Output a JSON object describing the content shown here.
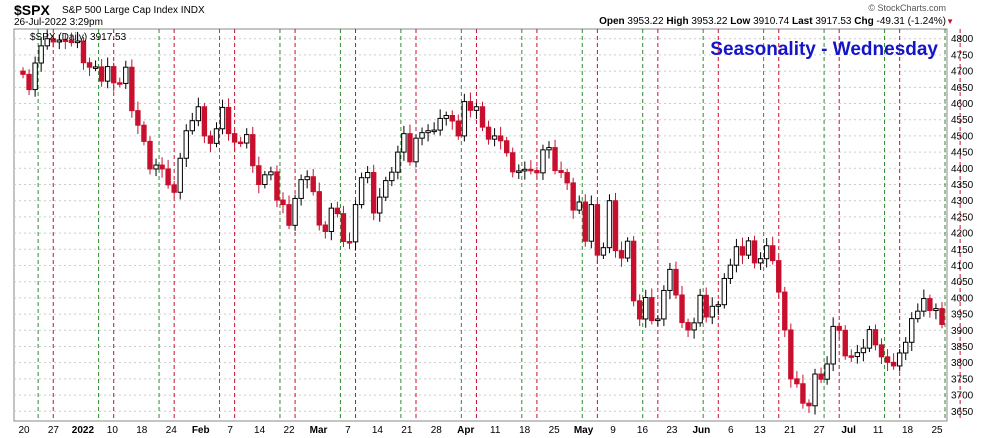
{
  "header": {
    "symbol": "$SPX",
    "name": "S&P 500 Large Cap Index INDX",
    "date": "26-Jul-2022 3:29pm",
    "watermark": "© StockCharts.com",
    "open_label": "Open",
    "open": "3953.22",
    "high_label": "High",
    "high": "3953.22",
    "low_label": "Low",
    "low": "3910.74",
    "last_label": "Last",
    "last": "3917.53",
    "chg_label": "Chg",
    "chg": "-49.31 (-1.24%)"
  },
  "colors": {
    "up_candle": "#000000",
    "down_candle": "#c8102e",
    "green_line": "#2e8b2e",
    "red_line": "#c8102e",
    "title_color": "#1414c8",
    "grid": "#cccccc"
  },
  "chart_data": {
    "type": "candlestick",
    "title": "Seasonality - Wednesday",
    "legend": "$SPX (Daily) 3917.53",
    "ylim": [
      3620,
      4830
    ],
    "y_ticks": [
      3650,
      3700,
      3750,
      3800,
      3850,
      3900,
      3950,
      4000,
      4050,
      4100,
      4150,
      4200,
      4250,
      4300,
      4350,
      4400,
      4450,
      4500,
      4550,
      4600,
      4650,
      4700,
      4750,
      4800
    ],
    "x_labels": [
      "20",
      "27",
      "2022",
      "10",
      "18",
      "24",
      "Feb",
      "7",
      "14",
      "22",
      "Mar",
      "7",
      "14",
      "21",
      "28",
      "Apr",
      "11",
      "18",
      "25",
      "May",
      "9",
      "16",
      "23",
      "Jun",
      "6",
      "13",
      "21",
      "27",
      "Jul",
      "11",
      "18",
      "25"
    ],
    "closes": [
      4690,
      4643,
      4725,
      4778,
      4800,
      4790,
      4796,
      4795,
      4788,
      4793,
      4726,
      4712,
      4713,
      4669,
      4714,
      4664,
      4662,
      4712,
      4578,
      4533,
      4483,
      4398,
      4410,
      4398,
      4349,
      4326,
      4431,
      4516,
      4547,
      4590,
      4500,
      4477,
      4522,
      4588,
      4507,
      4481,
      4478,
      4504,
      4408,
      4350,
      4380,
      4389,
      4302,
      4288,
      4224,
      4307,
      4365,
      4374,
      4328,
      4225,
      4205,
      4277,
      4260,
      4174,
      4173,
      4288,
      4371,
      4387,
      4262,
      4311,
      4362,
      4388,
      4450,
      4507,
      4420,
      4493,
      4510,
      4516,
      4518,
      4554,
      4563,
      4546,
      4500,
      4606,
      4579,
      4590,
      4527,
      4490,
      4500,
      4485,
      4448,
      4389,
      4392,
      4397,
      4393,
      4386,
      4457,
      4464,
      4393,
      4387,
      4355,
      4271,
      4296,
      4175,
      4288,
      4132,
      4155,
      4300,
      4146,
      4123,
      4175,
      3991,
      3935,
      4001,
      3930,
      3935,
      4023,
      4088,
      4009,
      3924,
      3901,
      3923,
      4008,
      3941,
      3974,
      3979,
      4060,
      4101,
      4158,
      4132,
      4176,
      4108,
      4121,
      4161,
      4115,
      4018,
      3901,
      3750,
      3735,
      3675,
      3667,
      3765,
      3749,
      3796,
      3912,
      3900,
      3821,
      3819,
      3831,
      3845,
      3902,
      3855,
      3818,
      3801,
      3790,
      3830,
      3863,
      3936,
      3959,
      3998,
      3961,
      3967,
      3918
    ],
    "wednesday_markers": [
      5,
      15,
      25,
      35,
      45,
      55,
      65,
      75,
      85,
      95,
      105,
      115,
      125,
      135,
      145,
      155
    ],
    "series": [],
    "xlabel": "",
    "ylabel": ""
  }
}
